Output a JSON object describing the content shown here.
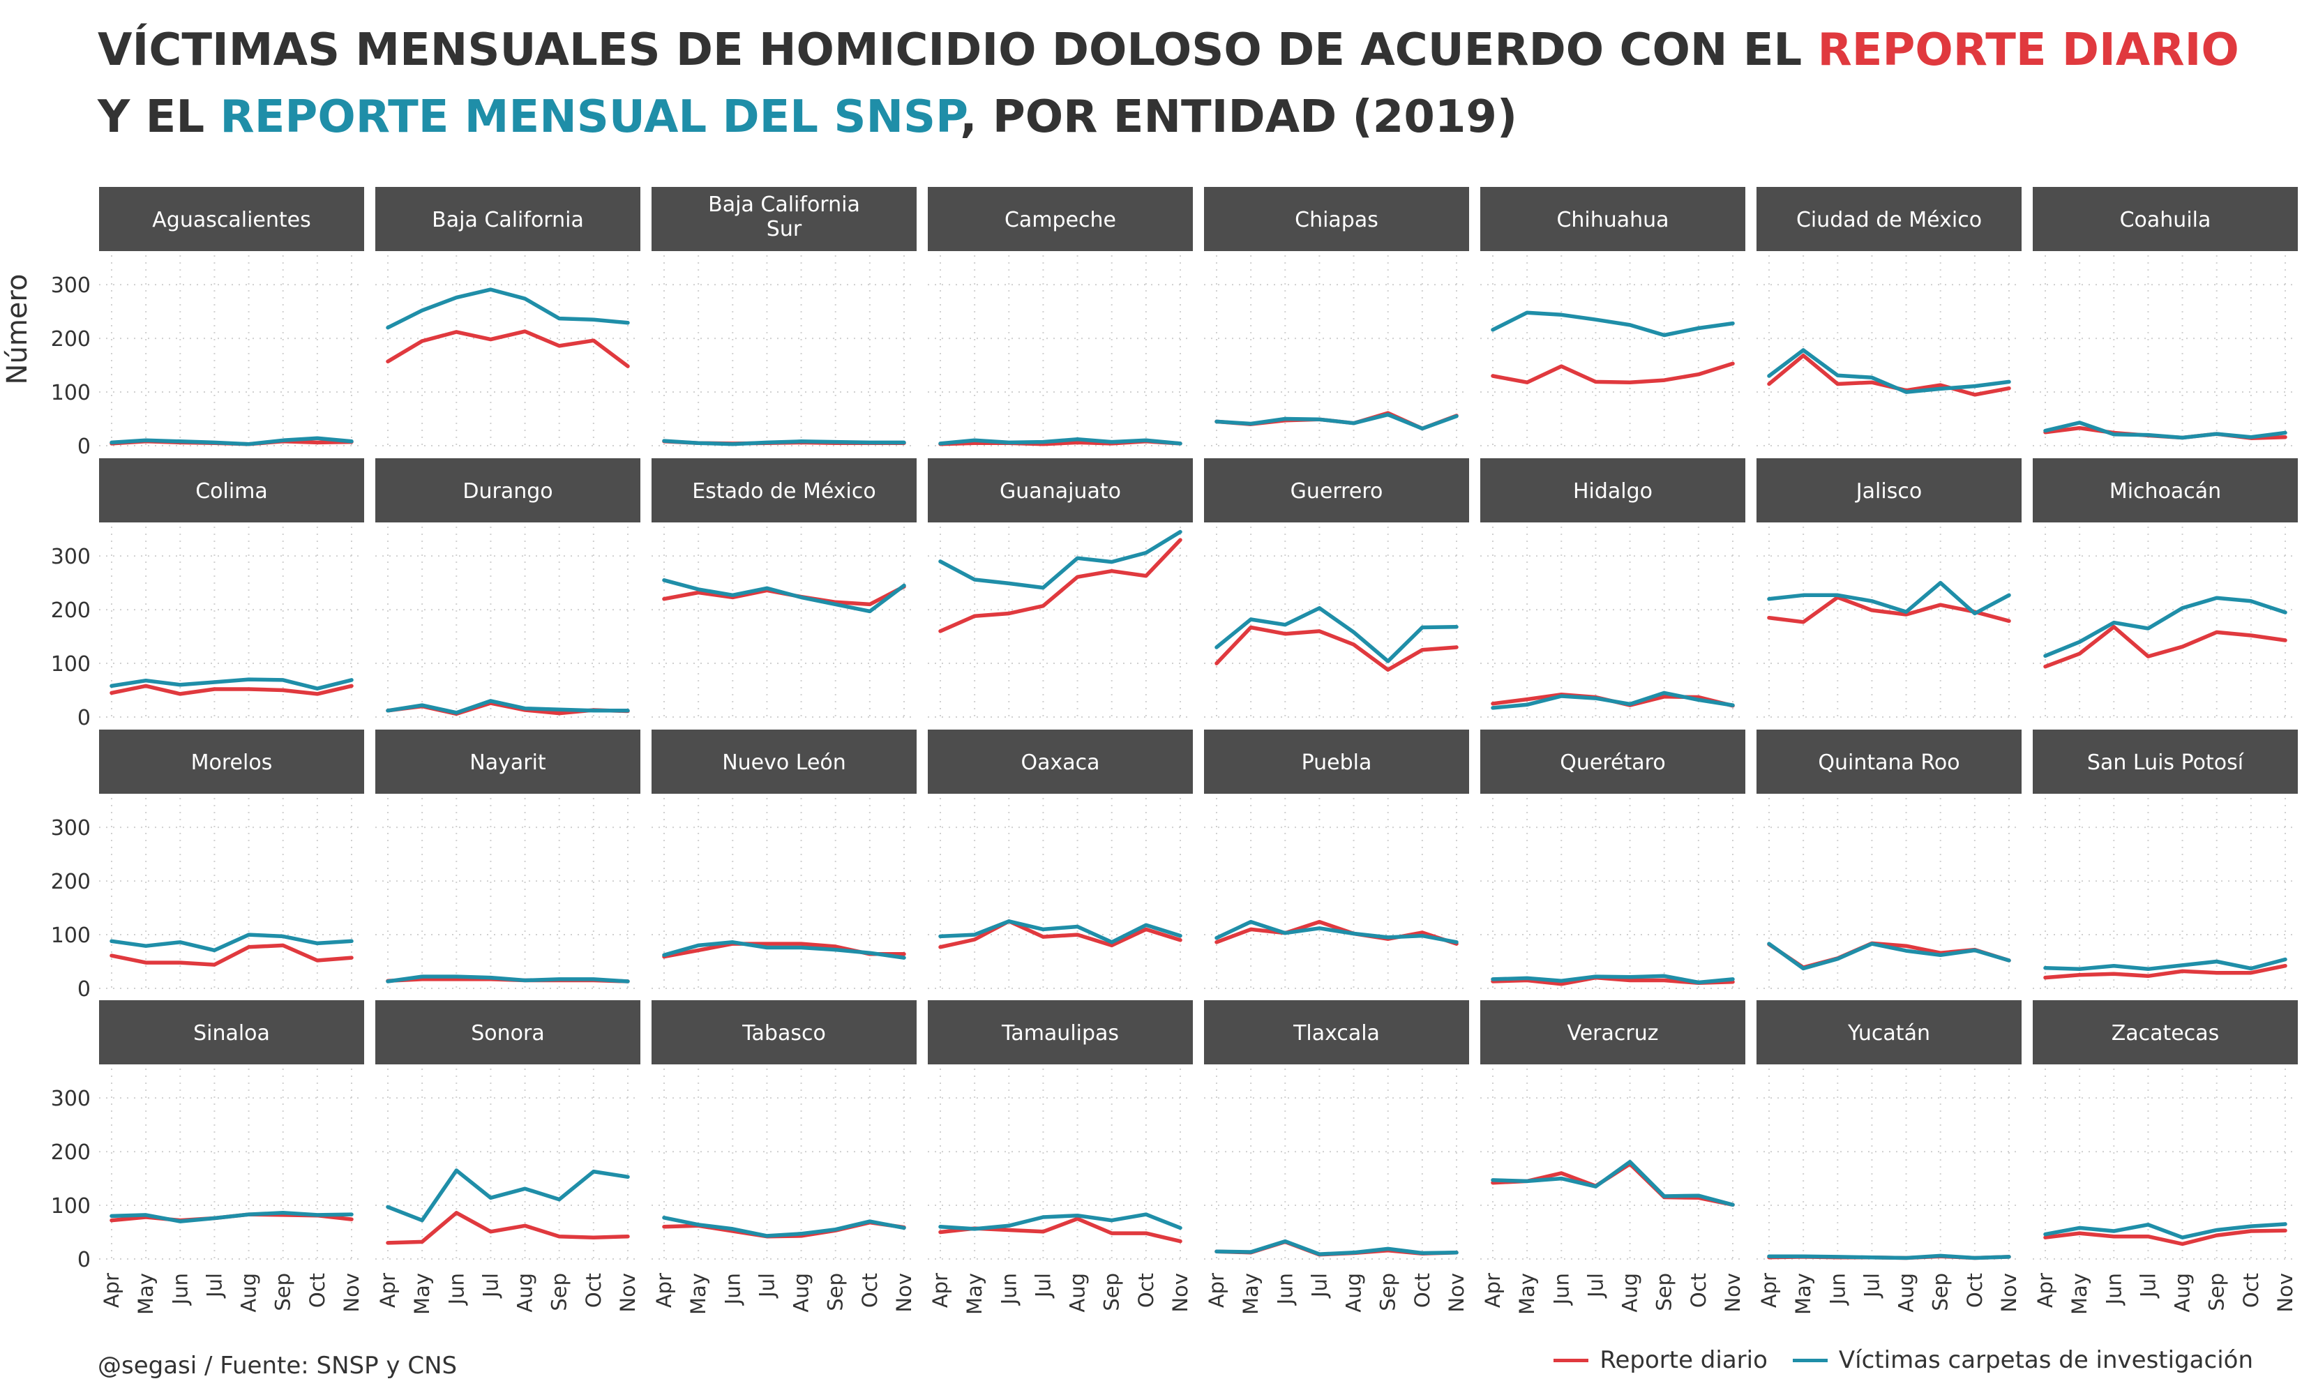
{
  "title_parts": [
    {
      "text": "VÍCTIMAS MENSUALES DE HOMICIDIO DOLOSO DE ACUERDO CON EL ",
      "color": "#333333"
    },
    {
      "text": "REPORTE DIARIO",
      "color": "#e0393e"
    },
    {
      "text": " Y EL ",
      "color": "#333333"
    },
    {
      "text": "REPORTE MENSUAL DEL SNSP",
      "color": "#1f8ea8"
    },
    {
      "text": ", POR ENTIDAD (2019)",
      "color": "#333333"
    }
  ],
  "caption": "@segasi / Fuente: SNSP y CNS",
  "legend": [
    {
      "label": "Reporte diario",
      "color": "#e0393e"
    },
    {
      "label": "Víctimas carpetas de investigación",
      "color": "#1f8ea8"
    }
  ],
  "colors": {
    "strip_bg": "#4d4d4d",
    "strip_text": "#ffffff",
    "grid": "#d0d0d0",
    "text": "#333333"
  },
  "chart_data": {
    "type": "line",
    "facet_columns": 8,
    "x": [
      "Apr",
      "May",
      "Jun",
      "Jul",
      "Aug",
      "Sep",
      "Oct",
      "Nov"
    ],
    "ylabel": "Número",
    "yticks": [
      0,
      100,
      200,
      300
    ],
    "ylim": [
      0,
      360
    ],
    "grid": true,
    "legend_position": "bottom-right",
    "series_names": [
      "Reporte diario",
      "Víctimas carpetas de investigación"
    ],
    "panels": [
      {
        "state": "Aguascalientes",
        "series": [
          [
            4,
            8,
            6,
            5,
            3,
            8,
            6,
            7
          ],
          [
            6,
            10,
            8,
            6,
            3,
            10,
            14,
            8
          ]
        ]
      },
      {
        "state": "Baja California",
        "series": [
          [
            157,
            195,
            212,
            198,
            213,
            186,
            196,
            148
          ],
          [
            220,
            252,
            276,
            291,
            274,
            237,
            235,
            229
          ]
        ]
      },
      {
        "state": "Baja California Sur",
        "series": [
          [
            8,
            5,
            4,
            5,
            6,
            5,
            5,
            5
          ],
          [
            9,
            5,
            3,
            6,
            8,
            7,
            6,
            6
          ]
        ]
      },
      {
        "state": "Campeche",
        "series": [
          [
            3,
            5,
            5,
            3,
            6,
            4,
            8,
            4
          ],
          [
            4,
            10,
            6,
            7,
            12,
            7,
            10,
            4
          ]
        ]
      },
      {
        "state": "Chiapas",
        "series": [
          [
            45,
            40,
            47,
            49,
            42,
            61,
            32,
            56
          ],
          [
            45,
            41,
            50,
            49,
            42,
            58,
            32,
            55
          ]
        ]
      },
      {
        "state": "Chihuahua",
        "series": [
          [
            130,
            118,
            148,
            119,
            118,
            122,
            133,
            153
          ],
          [
            216,
            248,
            244,
            235,
            225,
            206,
            219,
            228
          ]
        ]
      },
      {
        "state": "Ciudad de México",
        "series": [
          [
            115,
            168,
            115,
            118,
            103,
            113,
            95,
            107
          ],
          [
            130,
            178,
            131,
            127,
            100,
            106,
            111,
            119
          ]
        ]
      },
      {
        "state": "Coahuila",
        "series": [
          [
            25,
            33,
            24,
            19,
            15,
            22,
            14,
            16
          ],
          [
            28,
            43,
            21,
            20,
            15,
            22,
            16,
            24
          ]
        ]
      },
      {
        "state": "Colima",
        "series": [
          [
            45,
            58,
            43,
            52,
            52,
            50,
            43,
            58
          ],
          [
            58,
            68,
            60,
            65,
            70,
            69,
            53,
            69
          ]
        ]
      },
      {
        "state": "Durango",
        "series": [
          [
            12,
            20,
            6,
            26,
            13,
            7,
            13,
            11
          ],
          [
            12,
            22,
            8,
            30,
            16,
            14,
            12,
            12
          ]
        ]
      },
      {
        "state": "Estado de México",
        "series": [
          [
            220,
            232,
            223,
            236,
            224,
            214,
            210,
            243
          ],
          [
            255,
            238,
            227,
            240,
            223,
            210,
            197,
            245
          ]
        ]
      },
      {
        "state": "Guanajuato",
        "series": [
          [
            160,
            188,
            193,
            207,
            261,
            272,
            263,
            330
          ],
          [
            290,
            256,
            249,
            241,
            296,
            289,
            306,
            345
          ]
        ]
      },
      {
        "state": "Guerrero",
        "series": [
          [
            100,
            167,
            155,
            160,
            135,
            88,
            125,
            130
          ],
          [
            130,
            182,
            172,
            203,
            158,
            104,
            167,
            168
          ]
        ]
      },
      {
        "state": "Hidalgo",
        "series": [
          [
            25,
            33,
            42,
            37,
            22,
            38,
            37,
            21
          ],
          [
            17,
            23,
            39,
            35,
            24,
            45,
            32,
            22
          ]
        ]
      },
      {
        "state": "Jalisco",
        "series": [
          [
            185,
            177,
            223,
            199,
            191,
            209,
            196,
            179
          ],
          [
            220,
            227,
            227,
            216,
            196,
            250,
            193,
            227
          ]
        ]
      },
      {
        "state": "Michoacán",
        "series": [
          [
            94,
            118,
            168,
            113,
            131,
            158,
            152,
            143
          ],
          [
            114,
            140,
            176,
            165,
            203,
            222,
            216,
            195
          ]
        ]
      },
      {
        "state": "Morelos",
        "series": [
          [
            61,
            48,
            48,
            44,
            77,
            80,
            52,
            57
          ],
          [
            88,
            79,
            86,
            71,
            100,
            97,
            84,
            88
          ]
        ]
      },
      {
        "state": "Nayarit",
        "series": [
          [
            14,
            17,
            17,
            17,
            15,
            15,
            15,
            13
          ],
          [
            13,
            22,
            22,
            20,
            15,
            17,
            17,
            13
          ]
        ]
      },
      {
        "state": "Nuevo León",
        "series": [
          [
            59,
            71,
            83,
            83,
            83,
            78,
            64,
            64
          ],
          [
            62,
            80,
            86,
            76,
            76,
            72,
            66,
            57
          ]
        ]
      },
      {
        "state": "Oaxaca",
        "series": [
          [
            77,
            91,
            125,
            96,
            100,
            80,
            110,
            90
          ],
          [
            97,
            100,
            125,
            110,
            115,
            86,
            118,
            98
          ]
        ]
      },
      {
        "state": "Puebla",
        "series": [
          [
            86,
            110,
            103,
            124,
            102,
            92,
            104,
            83
          ],
          [
            94,
            124,
            103,
            112,
            102,
            95,
            98,
            86
          ]
        ]
      },
      {
        "state": "Querétaro",
        "series": [
          [
            13,
            15,
            8,
            20,
            15,
            15,
            10,
            12
          ],
          [
            17,
            19,
            14,
            22,
            21,
            23,
            11,
            17
          ]
        ]
      },
      {
        "state": "Quintana Roo",
        "series": [
          [
            82,
            39,
            56,
            84,
            79,
            66,
            72,
            52
          ],
          [
            83,
            37,
            55,
            83,
            70,
            62,
            71,
            52
          ]
        ]
      },
      {
        "state": "San Luis Potosí",
        "series": [
          [
            20,
            25,
            27,
            23,
            32,
            29,
            29,
            42
          ],
          [
            38,
            36,
            42,
            36,
            43,
            50,
            37,
            54
          ]
        ]
      },
      {
        "state": "Sinaloa",
        "series": [
          [
            72,
            78,
            72,
            76,
            83,
            82,
            81,
            74
          ],
          [
            80,
            82,
            70,
            76,
            83,
            86,
            82,
            83
          ]
        ]
      },
      {
        "state": "Sonora",
        "series": [
          [
            30,
            32,
            86,
            51,
            62,
            42,
            40,
            42
          ],
          [
            97,
            72,
            165,
            114,
            131,
            111,
            163,
            153
          ]
        ]
      },
      {
        "state": "Tabasco",
        "series": [
          [
            60,
            62,
            52,
            42,
            43,
            53,
            68,
            59
          ],
          [
            77,
            64,
            56,
            43,
            47,
            55,
            70,
            58
          ]
        ]
      },
      {
        "state": "Tamaulipas",
        "series": [
          [
            50,
            57,
            54,
            51,
            75,
            48,
            48,
            33
          ],
          [
            60,
            56,
            62,
            78,
            81,
            72,
            83,
            58
          ]
        ]
      },
      {
        "state": "Tlaxcala",
        "series": [
          [
            14,
            12,
            32,
            8,
            11,
            16,
            10,
            12
          ],
          [
            14,
            13,
            33,
            9,
            12,
            19,
            11,
            12
          ]
        ]
      },
      {
        "state": "Veracruz",
        "series": [
          [
            142,
            145,
            160,
            136,
            177,
            115,
            114,
            101
          ],
          [
            147,
            145,
            150,
            135,
            181,
            117,
            118,
            101
          ]
        ]
      },
      {
        "state": "Yucatán",
        "series": [
          [
            3,
            4,
            3,
            3,
            2,
            5,
            2,
            4
          ],
          [
            5,
            5,
            4,
            3,
            2,
            6,
            2,
            4
          ]
        ]
      },
      {
        "state": "Zacatecas",
        "series": [
          [
            40,
            48,
            42,
            42,
            28,
            44,
            52,
            53
          ],
          [
            46,
            58,
            52,
            64,
            40,
            54,
            61,
            65
          ]
        ]
      }
    ]
  }
}
